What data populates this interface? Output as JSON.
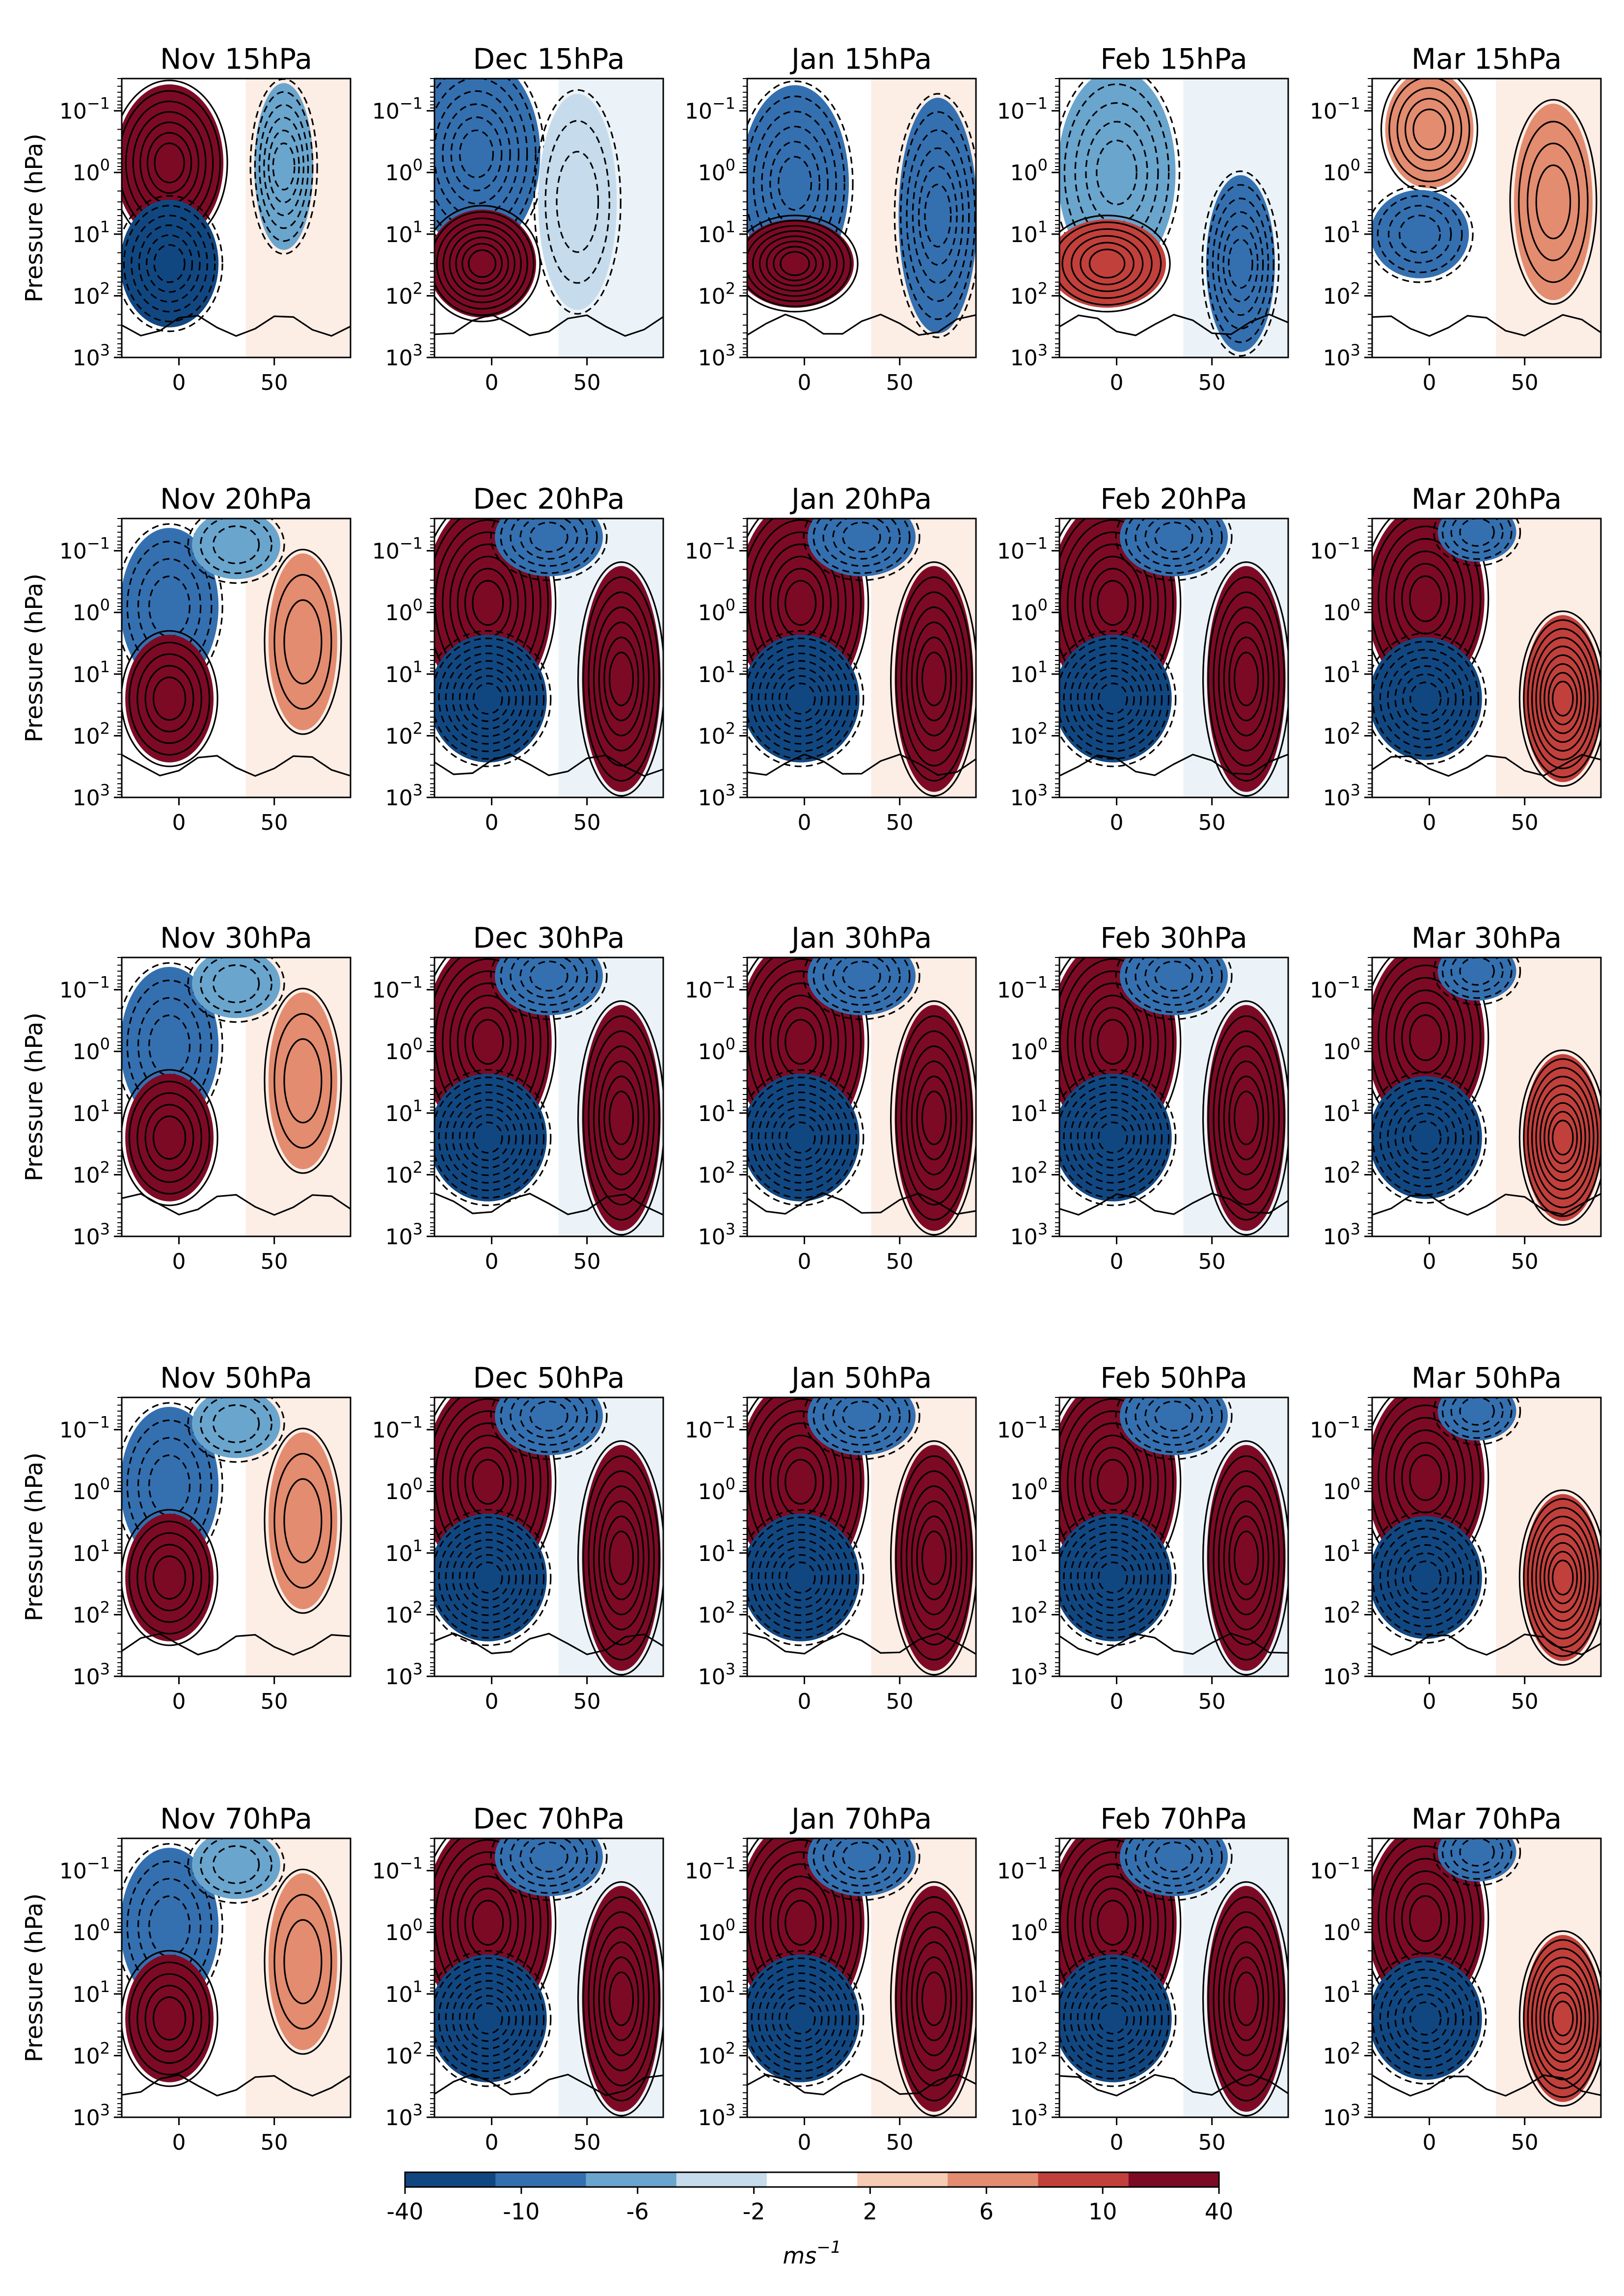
{
  "chart_data": {
    "type": "heatmap",
    "description_kind": "zonal-mean zonal wind anomaly composites (filled) with contours",
    "rows": [
      "15hPa",
      "20hPa",
      "30hPa",
      "50hPa",
      "70hPa"
    ],
    "columns": [
      "Nov",
      "Dec",
      "Jan",
      "Feb",
      "Mar"
    ],
    "panels": [
      {
        "title": "Nov 15hPa"
      },
      {
        "title": "Dec 15hPa"
      },
      {
        "title": "Jan 15hPa"
      },
      {
        "title": "Feb 15hPa"
      },
      {
        "title": "Mar 15hPa"
      },
      {
        "title": "Nov 20hPa"
      },
      {
        "title": "Dec 20hPa"
      },
      {
        "title": "Jan 20hPa"
      },
      {
        "title": "Feb 20hPa"
      },
      {
        "title": "Mar 20hPa"
      },
      {
        "title": "Nov 30hPa"
      },
      {
        "title": "Dec 30hPa"
      },
      {
        "title": "Jan 30hPa"
      },
      {
        "title": "Feb 30hPa"
      },
      {
        "title": "Mar 30hPa"
      },
      {
        "title": "Nov 50hPa"
      },
      {
        "title": "Dec 50hPa"
      },
      {
        "title": "Jan 50hPa"
      },
      {
        "title": "Feb 50hPa"
      },
      {
        "title": "Mar 50hPa"
      },
      {
        "title": "Nov 70hPa"
      },
      {
        "title": "Dec 70hPa"
      },
      {
        "title": "Jan 70hPa"
      },
      {
        "title": "Feb 70hPa"
      },
      {
        "title": "Mar 70hPa"
      }
    ],
    "ylabel": "Pressure (hPa)",
    "y_scale": "log",
    "y_reversed": true,
    "ylim": [
      1000,
      0.03
    ],
    "yticks": [
      0.1,
      1,
      10,
      100,
      1000
    ],
    "yticklabels": [
      {
        "base": "10",
        "exp": "−1"
      },
      {
        "base": "10",
        "exp": "0"
      },
      {
        "base": "10",
        "exp": "1"
      },
      {
        "base": "10",
        "exp": "2"
      },
      {
        "base": "10",
        "exp": "3"
      }
    ],
    "xlim": [
      -30,
      90
    ],
    "xticks": [
      0,
      50
    ],
    "xticklabels": [
      "0",
      "50"
    ],
    "colorbar": {
      "boundaries": [
        -40,
        -10,
        -6,
        -2,
        2,
        6,
        10,
        40
      ],
      "tick_labels": [
        "-40",
        "-10",
        "-6",
        "-2",
        "2",
        "6",
        "10",
        "40"
      ],
      "colors": [
        "#114781",
        "#3470b0",
        "#6aa5cd",
        "#c6dcec",
        "#ffffff",
        "#f7cbb4",
        "#e38c70",
        "#c2403b",
        "#7d0a25"
      ],
      "label_base": "ms",
      "label_exp": "−1"
    },
    "grid": false
  }
}
